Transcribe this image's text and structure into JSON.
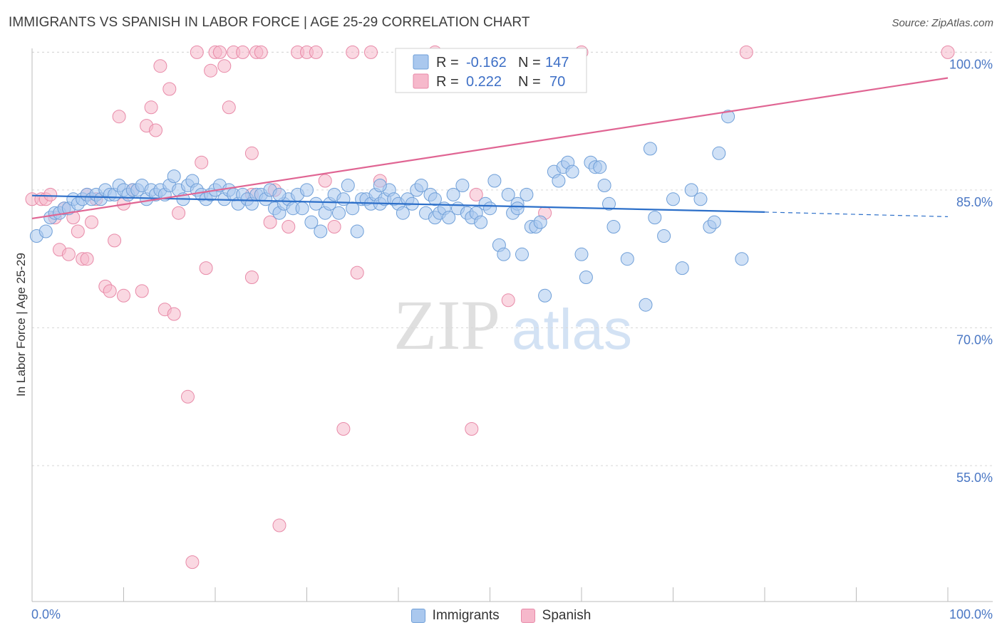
{
  "title": "IMMIGRANTS VS SPANISH IN LABOR FORCE | AGE 25-29 CORRELATION CHART",
  "source": "Source: ZipAtlas.com",
  "watermark": {
    "zip": "ZIP",
    "atlas": "atlas"
  },
  "colors": {
    "immigrants_fill": "#aac8ee",
    "immigrants_stroke": "#6f9fd8",
    "immigrants_line": "#2c6fc9",
    "spanish_fill": "#f6b8cb",
    "spanish_stroke": "#e88aa8",
    "spanish_line": "#e06593",
    "grid": "#d8d8d8",
    "tick_label": "#4a77c4"
  },
  "legend": {
    "immigrants": {
      "r_label": "R =",
      "r_value": "-0.162",
      "n_label": "N =",
      "n_value": "147"
    },
    "spanish": {
      "r_label": "R =",
      "r_value": "0.222",
      "n_label": "N =",
      "n_value": "70"
    }
  },
  "bottom_legend": {
    "immigrants": "Immigrants",
    "spanish": "Spanish"
  },
  "chart_data": {
    "type": "scatter",
    "title": "IMMIGRANTS VS SPANISH IN LABOR FORCE | AGE 25-29 CORRELATION CHART",
    "xlabel": "",
    "ylabel": "In Labor Force | Age 25-29",
    "xlim": [
      0,
      100
    ],
    "ylim": [
      38.5,
      101.5
    ],
    "x_tick_labels": [
      "0.0%",
      "100.0%"
    ],
    "y_ticks": [
      55,
      70,
      85,
      100
    ],
    "y_tick_labels": [
      "55.0%",
      "70.0%",
      "85.0%",
      "100.0%"
    ],
    "grid": true,
    "series": [
      {
        "name": "Immigrants",
        "r": -0.162,
        "n": 147,
        "trend": {
          "x0": 0,
          "y0": 84.4,
          "x1": 80,
          "y1": 82.6,
          "dash_x1": 100,
          "dash_y1": 82.1
        },
        "points": [
          [
            0.5,
            80.0
          ],
          [
            1.5,
            80.5
          ],
          [
            2,
            82.0
          ],
          [
            2.5,
            82.5
          ],
          [
            3,
            82.5
          ],
          [
            3.5,
            83.0
          ],
          [
            4,
            83.0
          ],
          [
            4.5,
            84.0
          ],
          [
            5,
            83.5
          ],
          [
            5.5,
            84.0
          ],
          [
            6,
            84.5
          ],
          [
            6.5,
            84.0
          ],
          [
            7,
            84.5
          ],
          [
            7.5,
            84.0
          ],
          [
            8,
            85.0
          ],
          [
            8.5,
            84.5
          ],
          [
            9,
            84.5
          ],
          [
            9.5,
            85.5
          ],
          [
            10,
            85.0
          ],
          [
            10.5,
            84.5
          ],
          [
            11,
            85.0
          ],
          [
            11.5,
            85.0
          ],
          [
            12,
            85.5
          ],
          [
            12.5,
            84.0
          ],
          [
            13,
            85.0
          ],
          [
            13.5,
            84.5
          ],
          [
            14,
            85.0
          ],
          [
            14.5,
            84.5
          ],
          [
            15,
            85.5
          ],
          [
            15.5,
            86.5
          ],
          [
            16,
            85.0
          ],
          [
            16.5,
            84.0
          ],
          [
            17,
            85.5
          ],
          [
            17.5,
            86.0
          ],
          [
            18,
            85.0
          ],
          [
            18.5,
            84.5
          ],
          [
            19,
            84.0
          ],
          [
            19.5,
            84.5
          ],
          [
            20,
            85.0
          ],
          [
            20.5,
            85.5
          ],
          [
            21,
            84.0
          ],
          [
            21.5,
            85.0
          ],
          [
            22,
            84.5
          ],
          [
            22.5,
            83.5
          ],
          [
            23,
            84.5
          ],
          [
            23.5,
            84.0
          ],
          [
            24,
            83.5
          ],
          [
            24.5,
            84.5
          ],
          [
            25,
            84.5
          ],
          [
            25.5,
            84.0
          ],
          [
            26,
            85.0
          ],
          [
            26.5,
            83.0
          ],
          [
            27,
            82.5
          ],
          [
            27.5,
            83.5
          ],
          [
            28,
            84.0
          ],
          [
            28.5,
            83.0
          ],
          [
            29,
            84.5
          ],
          [
            29.5,
            83.0
          ],
          [
            30,
            85.0
          ],
          [
            30.5,
            81.5
          ],
          [
            31,
            83.5
          ],
          [
            31.5,
            80.5
          ],
          [
            32,
            82.5
          ],
          [
            32.5,
            83.5
          ],
          [
            33,
            84.5
          ],
          [
            33.5,
            82.5
          ],
          [
            34,
            84.0
          ],
          [
            34.5,
            85.5
          ],
          [
            35,
            83.0
          ],
          [
            35.5,
            80.5
          ],
          [
            36,
            84.0
          ],
          [
            36.5,
            84.0
          ],
          [
            37,
            83.5
          ],
          [
            37.5,
            84.5
          ],
          [
            38,
            83.5
          ],
          [
            38.5,
            84.0
          ],
          [
            39,
            85.0
          ],
          [
            39.5,
            84.0
          ],
          [
            40,
            83.5
          ],
          [
            40.5,
            82.5
          ],
          [
            41,
            84.0
          ],
          [
            41.5,
            83.5
          ],
          [
            42,
            85.0
          ],
          [
            42.5,
            85.5
          ],
          [
            43,
            82.5
          ],
          [
            43.5,
            84.5
          ],
          [
            44,
            82.0
          ],
          [
            44.5,
            82.5
          ],
          [
            45,
            83.0
          ],
          [
            45.5,
            82.0
          ],
          [
            46,
            84.5
          ],
          [
            46.5,
            83.0
          ],
          [
            47,
            85.5
          ],
          [
            47.5,
            82.5
          ],
          [
            48,
            82.0
          ],
          [
            48.5,
            82.5
          ],
          [
            49,
            81.5
          ],
          [
            49.5,
            83.5
          ],
          [
            50,
            83.0
          ],
          [
            50.5,
            86.0
          ],
          [
            51,
            79.0
          ],
          [
            51.5,
            78.0
          ],
          [
            52,
            84.5
          ],
          [
            52.5,
            82.5
          ],
          [
            53,
            83.5
          ],
          [
            53.5,
            78.0
          ],
          [
            54,
            84.5
          ],
          [
            54.5,
            81.0
          ],
          [
            55,
            81.0
          ],
          [
            55.5,
            81.5
          ],
          [
            56,
            73.5
          ],
          [
            57,
            87.0
          ],
          [
            57.5,
            86.0
          ],
          [
            58,
            87.5
          ],
          [
            58.5,
            88.0
          ],
          [
            59,
            87.0
          ],
          [
            60,
            78.0
          ],
          [
            60.5,
            75.5
          ],
          [
            61,
            88.0
          ],
          [
            61.5,
            87.5
          ],
          [
            62,
            87.5
          ],
          [
            62.5,
            85.5
          ],
          [
            63,
            83.5
          ],
          [
            63.5,
            81.0
          ],
          [
            65,
            77.5
          ],
          [
            67,
            72.5
          ],
          [
            67.5,
            89.5
          ],
          [
            68,
            82.0
          ],
          [
            69,
            80.0
          ],
          [
            70,
            84.0
          ],
          [
            71,
            76.5
          ],
          [
            72,
            85.0
          ],
          [
            73,
            84.0
          ],
          [
            74,
            81.0
          ],
          [
            74.5,
            81.5
          ],
          [
            75,
            89.0
          ],
          [
            76,
            93.0
          ],
          [
            77.5,
            77.5
          ],
          [
            53,
            83.0
          ],
          [
            44,
            84.0
          ],
          [
            38,
            85.5
          ],
          [
            27,
            84.5
          ]
        ]
      },
      {
        "name": "Spanish",
        "r": 0.222,
        "n": 70,
        "trend": {
          "x0": 0,
          "y0": 81.9,
          "x1": 100,
          "y1": 97.2
        },
        "points": [
          [
            0,
            84.0
          ],
          [
            1,
            84.0
          ],
          [
            1.5,
            84.0
          ],
          [
            2,
            84.5
          ],
          [
            2.5,
            82.0
          ],
          [
            3,
            78.5
          ],
          [
            3.5,
            83.0
          ],
          [
            4,
            78.0
          ],
          [
            4.5,
            82.0
          ],
          [
            5,
            80.5
          ],
          [
            5.5,
            77.5
          ],
          [
            6,
            77.5
          ],
          [
            6.5,
            81.5
          ],
          [
            7,
            84.0
          ],
          [
            8,
            74.5
          ],
          [
            8.5,
            74.0
          ],
          [
            9,
            79.5
          ],
          [
            9.5,
            93.0
          ],
          [
            10,
            73.5
          ],
          [
            11,
            85.0
          ],
          [
            12,
            74.0
          ],
          [
            12.5,
            92.0
          ],
          [
            13,
            94.0
          ],
          [
            13.5,
            91.5
          ],
          [
            14,
            98.5
          ],
          [
            14.5,
            72.0
          ],
          [
            15,
            96.0
          ],
          [
            15.5,
            71.5
          ],
          [
            16,
            82.5
          ],
          [
            17,
            62.5
          ],
          [
            17.5,
            44.5
          ],
          [
            18,
            100.0
          ],
          [
            18.5,
            88.0
          ],
          [
            19,
            76.5
          ],
          [
            19.5,
            98.0
          ],
          [
            20,
            100.0
          ],
          [
            20.5,
            100.0
          ],
          [
            21,
            98.5
          ],
          [
            21.5,
            94.0
          ],
          [
            22,
            100.0
          ],
          [
            23,
            100.0
          ],
          [
            24,
            89.0
          ],
          [
            24,
            75.5
          ],
          [
            24.5,
            100.0
          ],
          [
            25,
            100.0
          ],
          [
            26,
            81.5
          ],
          [
            26.5,
            85.0
          ],
          [
            27,
            48.5
          ],
          [
            28,
            81.0
          ],
          [
            29,
            100.0
          ],
          [
            30,
            100.0
          ],
          [
            31,
            100.0
          ],
          [
            32,
            86.0
          ],
          [
            33,
            81.0
          ],
          [
            34,
            59.0
          ],
          [
            35,
            100.0
          ],
          [
            35.5,
            76.0
          ],
          [
            37,
            100.0
          ],
          [
            38,
            86.0
          ],
          [
            44,
            100.0
          ],
          [
            48,
            59.0
          ],
          [
            48.5,
            84.5
          ],
          [
            52,
            73.0
          ],
          [
            56,
            82.5
          ],
          [
            60,
            100.0
          ],
          [
            78,
            100.0
          ],
          [
            100,
            100.0
          ],
          [
            24,
            84.5
          ],
          [
            10,
            83.5
          ],
          [
            6,
            84.5
          ]
        ]
      }
    ]
  }
}
